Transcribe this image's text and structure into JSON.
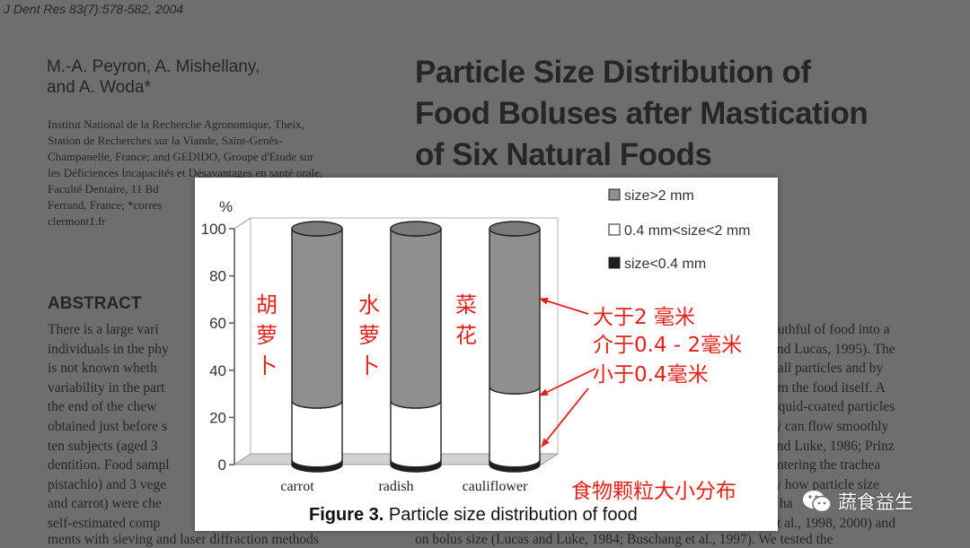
{
  "journal_ref": "J Dent Res 83(7):578-582, 2004",
  "authors": [
    "M.-A. Peyron, A. Mishellany,",
    "and A. Woda*"
  ],
  "affiliation": [
    "Institut National de la Recherche Agronomique, Theix,",
    "Station de Recherches sur la Viande, Saint-Genès-",
    "Champanelle, France; and GEDIDO, Groupe d'Etude sur",
    "les Déficiences Incapacités et Désavantages en santé orale,",
    "Faculté Dentaire, 11 Bd",
    "Ferrand, France; *corres",
    "clermont1.fr"
  ],
  "paper_title": [
    "Particle Size Distribution of",
    "Food Boluses after Mastication",
    "of Six Natural Foods"
  ],
  "abstract_heading": "ABSTRACT",
  "abstract_left_lines": [
    "There is a large vari",
    "individuals in the phy",
    "is not known wheth",
    "variability in the part",
    "the end of the chew",
    "obtained just before s",
    "ten subjects (aged 3",
    "dentition. Food sampl",
    "pistachio) and 3 vege",
    "and carrot) were che",
    "self-estimated comp"
  ],
  "abstract_right_lines": [
    "outhful of food into a",
    "and Lucas, 1995). The",
    "hall particles and by",
    "om the food itself. A",
    "liquid-coated particles",
    "ty can flow smoothly",
    "and Luke, 1986; Prinz",
    "entering the trachea",
    "ly how particle size",
    "s ha",
    "et al., 1998, 2000) and"
  ],
  "abstract_bottom_left": "ments with sieving and laser diffraction methods",
  "abstract_bottom_right": "on bolus size (Lucas and Luke, 1984; Buschang et al., 1997). We tested the",
  "chart_data": {
    "type": "bar",
    "stacked": true,
    "style": "3d-cylinder",
    "ylabel": "%",
    "ylim": [
      0,
      100
    ],
    "yticks": [
      0,
      20,
      40,
      60,
      80,
      100
    ],
    "categories": [
      "carrot",
      "radish",
      "cauliflower"
    ],
    "series": [
      {
        "name": "size<0.4 mm",
        "values": [
          2,
          2,
          2
        ],
        "color": "#1e1e1e"
      },
      {
        "name": "0.4 mm<size<2 mm",
        "values": [
          25,
          25,
          31
        ],
        "color": "#ffffff"
      },
      {
        "name": "size>2 mm",
        "values": [
          73,
          73,
          67
        ],
        "color": "#8f8f8f"
      }
    ],
    "legend_position": "top-right",
    "caption": "Figure 3. Particle size distribution of food"
  },
  "annotations": {
    "bar_labels_cn": [
      "胡萝卜",
      "水萝卜",
      "菜花"
    ],
    "legend_cn": [
      "大于2 毫米",
      "介于0.4 - 2毫米",
      "小于0.4毫米"
    ],
    "figure_title_cn": "食物颗粒大小分布",
    "color": "#e0221b"
  },
  "watermark": "蔬食益生"
}
